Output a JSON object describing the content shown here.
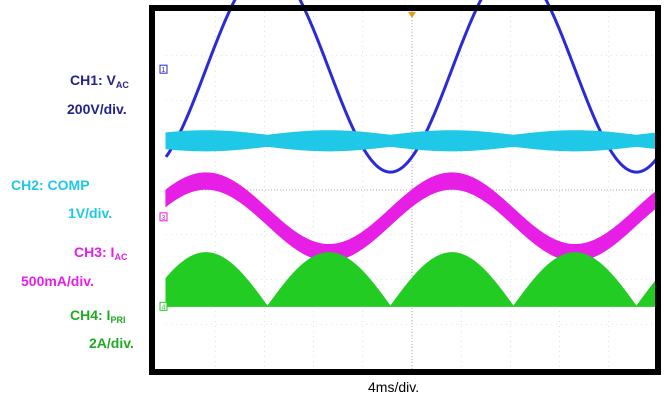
{
  "channels": {
    "ch1": {
      "name": "CH1: V",
      "sub": "AC",
      "scale": "200V/div.",
      "color": "#2a2ad8",
      "marker": "1"
    },
    "ch2": {
      "name": "CH2: COMP",
      "scale": "1V/div.",
      "color": "#1ec8e6"
    },
    "ch3": {
      "name": "CH3: I",
      "sub": "AC",
      "scale": "500mA/div.",
      "color": "#e61ee6",
      "marker": "3"
    },
    "ch4": {
      "name": "CH4: I",
      "sub": "PRI",
      "scale": "2A/div.",
      "color": "#22cc22",
      "marker": "4"
    }
  },
  "time_scale": "4ms/div.",
  "trigger_marker_color": "#e89a1a",
  "chart_data": {
    "type": "line",
    "x_unit": "ms",
    "xlim": [
      -20,
      20
    ],
    "grid": true,
    "series": [
      {
        "name": "CH1: VAC",
        "shape": "sine",
        "frequency_hz": 50,
        "amplitude_div": 2.3,
        "offset_div": 2.7,
        "phase_deg": 0
      },
      {
        "name": "CH2: COMP",
        "shape": "band",
        "center_div": 1.1,
        "band_width_div": 0.45
      },
      {
        "name": "CH3: IAC",
        "shape": "sine",
        "frequency_hz": 50,
        "amplitude_div": 0.8,
        "offset_div": -0.6,
        "phase_deg": 0
      },
      {
        "name": "CH4: IPRI",
        "shape": "rectified-sine",
        "frequency_hz": 100,
        "peak_div": 1.2,
        "offset_div": -2.6
      }
    ]
  }
}
